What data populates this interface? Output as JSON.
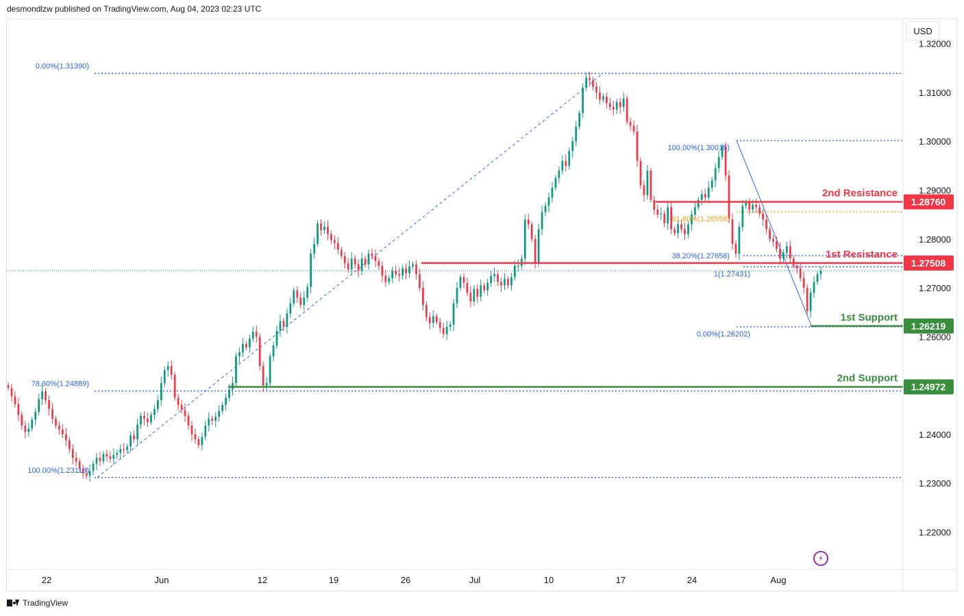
{
  "header": {
    "published": "desmondlzw published on TradingView.com, Aug 04, 2023 02:23 UTC"
  },
  "footer": {
    "brand": "TradingView"
  },
  "toolbar": {
    "currency": "USD"
  },
  "chart_data": {
    "type": "candlestick",
    "y_axis": {
      "range": [
        1.2125,
        1.325
      ],
      "ticks": [
        "1.32000",
        "1.31000",
        "1.30000",
        "1.29000",
        "1.28000",
        "1.27000",
        "1.26000",
        "1.24000",
        "1.23000",
        "1.22000"
      ],
      "tick_values": [
        1.32,
        1.31,
        1.3,
        1.29,
        1.28,
        1.27,
        1.26,
        1.24,
        1.23,
        1.22
      ]
    },
    "x_axis": {
      "labels": [
        "22",
        "Jun",
        "12",
        "19",
        "26",
        "Jul",
        "10",
        "17",
        "24",
        "Aug"
      ]
    },
    "colors": {
      "up": "#089981",
      "down": "#f23645",
      "fib": "#2962ff",
      "resistance": "#f23645",
      "support": "#388e3c",
      "fib_orange": "#f7a21b"
    },
    "levels": [
      {
        "name": "2nd Resistance",
        "price": 1.2876,
        "label": "1.28760",
        "role": "resistance"
      },
      {
        "name": "1st Resistance",
        "price": 1.27508,
        "label": "1.27508",
        "role": "resistance"
      },
      {
        "name": "1st Support",
        "price": 1.26219,
        "label": "1.26219",
        "role": "support"
      },
      {
        "name": "2nd Support",
        "price": 1.24972,
        "label": "1.24972",
        "role": "support"
      }
    ],
    "fib_labels": [
      "0.00%(1.31390)",
      "78.60%(1.24889)",
      "100.00%(1.23119)",
      "100.00%(1.30015)",
      "61.80%(1.28558)",
      "38.20%(1.27658)",
      "1(1.27431)",
      "0.00%(1.26202)"
    ],
    "closes": [
      1.2495,
      1.2478,
      1.2462,
      1.244,
      1.2418,
      1.2405,
      1.2412,
      1.243,
      1.2446,
      1.2472,
      1.2488,
      1.247,
      1.2452,
      1.2432,
      1.2418,
      1.241,
      1.24,
      1.2388,
      1.237,
      1.2352,
      1.2345,
      1.233,
      1.232,
      1.2315,
      1.2325,
      1.234,
      1.2352,
      1.2345,
      1.236,
      1.2355,
      1.235,
      1.2358,
      1.2362,
      1.237,
      1.2368,
      1.2375,
      1.2398,
      1.239,
      1.242,
      1.2438,
      1.2432,
      1.2425,
      1.244,
      1.2452,
      1.247,
      1.2505,
      1.2532,
      1.254,
      1.2522,
      1.2475,
      1.246,
      1.245,
      1.2438,
      1.2418,
      1.24,
      1.239,
      1.2378,
      1.2395,
      1.2418,
      1.2432,
      1.2428,
      1.2436,
      1.2448,
      1.246,
      1.2475,
      1.2492,
      1.2505,
      1.256,
      1.2568,
      1.2585,
      1.2578,
      1.2596,
      1.261,
      1.26,
      1.254,
      1.25,
      1.2505,
      1.256,
      1.2582,
      1.2612,
      1.2632,
      1.262,
      1.2648,
      1.2668,
      1.2695,
      1.268,
      1.2665,
      1.268,
      1.2702,
      1.277,
      1.279,
      1.2832,
      1.2818,
      1.2825,
      1.281,
      1.2798,
      1.2792,
      1.2778,
      1.2765,
      1.275,
      1.2738,
      1.276,
      1.2748,
      1.2735,
      1.276,
      1.2748,
      1.277,
      1.2765,
      1.2755,
      1.2745,
      1.2725,
      1.2712,
      1.272,
      1.2735,
      1.2728,
      1.2725,
      1.274,
      1.273,
      1.2744,
      1.2748,
      1.2728,
      1.27,
      1.2665,
      1.264,
      1.2628,
      1.2642,
      1.263,
      1.2618,
      1.2605,
      1.262,
      1.2625,
      1.2668,
      1.27,
      1.2722,
      1.271,
      1.269,
      1.2672,
      1.2698,
      1.2682,
      1.2705,
      1.2695,
      1.271,
      1.2724,
      1.2728,
      1.2712,
      1.2705,
      1.2718,
      1.2705,
      1.2722,
      1.2745,
      1.2745,
      1.276,
      1.284,
      1.283,
      1.28,
      1.275,
      1.282,
      1.2855,
      1.2868,
      1.2885,
      1.2905,
      1.2925,
      1.294,
      1.296,
      1.295,
      1.298,
      1.3,
      1.303,
      1.3058,
      1.311,
      1.313,
      1.3125,
      1.3112,
      1.31,
      1.3085,
      1.3092,
      1.3078,
      1.307,
      1.3065,
      1.308,
      1.307,
      1.3088,
      1.304,
      1.3032,
      1.302,
      1.296,
      1.291,
      1.289,
      1.294,
      1.288,
      1.286,
      1.285,
      1.2852,
      1.2832,
      1.2865,
      1.282,
      1.2812,
      1.283,
      1.282,
      1.281,
      1.283,
      1.285,
      1.2865,
      1.288,
      1.2892,
      1.2885,
      1.2905,
      1.292,
      1.2945,
      1.2968,
      1.299,
      1.293,
      1.284,
      1.279,
      1.277,
      1.2825,
      1.2868,
      1.2875,
      1.286,
      1.287,
      1.2865,
      1.2852,
      1.284,
      1.282,
      1.28,
      1.2795,
      1.278,
      1.276,
      1.2772,
      1.2785,
      1.276,
      1.2745,
      1.274,
      1.272,
      1.27,
      1.2652,
      1.269,
      1.2712,
      1.2728,
      1.2735
    ]
  }
}
